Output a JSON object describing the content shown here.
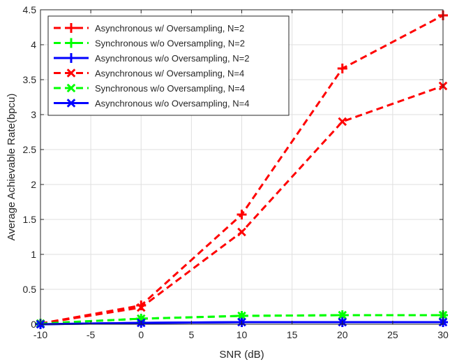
{
  "chart_data": {
    "type": "line",
    "title": "",
    "xlabel": "SNR (dB)",
    "ylabel": "Average Achievable Rate(bpcu)",
    "xlim": [
      -10,
      30
    ],
    "ylim": [
      0,
      4.5
    ],
    "xticks": [
      -10,
      -5,
      0,
      5,
      10,
      15,
      20,
      25,
      30
    ],
    "yticks": [
      0,
      0.5,
      1,
      1.5,
      2,
      2.5,
      3,
      3.5,
      4,
      4.5
    ],
    "x_tick_labels": [
      "-10",
      "-5",
      "0",
      "5",
      "10",
      "15",
      "20",
      "25",
      "30"
    ],
    "y_tick_labels": [
      "0",
      "0.5",
      "1",
      "1.5",
      "2",
      "2.5",
      "3",
      "3.5",
      "4",
      "4.5"
    ],
    "grid": true,
    "legend_position": "top-left",
    "x": [
      -10,
      0,
      10,
      20,
      30
    ],
    "series": [
      {
        "name": "Asynchronous w/ Oversampling, N=2",
        "values": [
          0.01,
          0.27,
          1.57,
          3.66,
          4.42
        ],
        "color": "#ff0000",
        "dash": "dashed",
        "marker": "plus"
      },
      {
        "name": "Synchronous w/o Oversampling, N=2",
        "values": [
          0.01,
          0.08,
          0.12,
          0.13,
          0.13
        ],
        "color": "#00ff00",
        "dash": "dashed",
        "marker": "plus"
      },
      {
        "name": "Asynchronous w/o Oversampling, N=2",
        "values": [
          0.0,
          0.02,
          0.03,
          0.03,
          0.03
        ],
        "color": "#0000ff",
        "dash": "solid",
        "marker": "plus"
      },
      {
        "name": "Asynchronous w/ Oversampling, N=4",
        "values": [
          0.01,
          0.24,
          1.32,
          2.9,
          3.41
        ],
        "color": "#ff0000",
        "dash": "dashed",
        "marker": "cross"
      },
      {
        "name": "Synchronous w/o Oversampling, N=4",
        "values": [
          0.01,
          0.08,
          0.12,
          0.13,
          0.13
        ],
        "color": "#00ff00",
        "dash": "dashed",
        "marker": "cross"
      },
      {
        "name": "Asynchronous w/o Oversampling, N=4",
        "values": [
          0.0,
          0.02,
          0.03,
          0.03,
          0.03
        ],
        "color": "#0000ff",
        "dash": "solid",
        "marker": "cross"
      }
    ]
  }
}
